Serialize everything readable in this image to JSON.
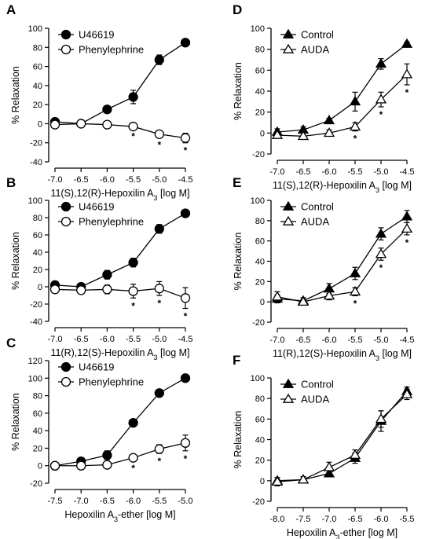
{
  "chart_data": [
    {
      "panel": "A",
      "type": "line",
      "xlabel": "11(S),12(R)-Hepoxilin A3 [log M]",
      "ylabel": "% Relaxation",
      "xlim": [
        -7.0,
        -4.5
      ],
      "ylim": [
        -40,
        100
      ],
      "xticks": [
        "-7.0",
        "-6.5",
        "-6.0",
        "-5.5",
        "-5.0",
        "-4.5"
      ],
      "yticks": [
        "-40",
        "-20",
        "0",
        "20",
        "40",
        "60",
        "80",
        "100"
      ],
      "legend": "top-left",
      "series": [
        {
          "name": "U46619",
          "marker": "circle-filled",
          "x": [
            -7.0,
            -6.5,
            -6.0,
            -5.5,
            -5.0,
            -4.5
          ],
          "y": [
            2,
            0,
            15,
            28,
            67,
            85
          ],
          "err": [
            2,
            2,
            3,
            7,
            5,
            2
          ]
        },
        {
          "name": "Phenylephrine",
          "marker": "circle-open",
          "x": [
            -7.0,
            -6.5,
            -6.0,
            -5.5,
            -5.0,
            -4.5
          ],
          "y": [
            -1,
            0,
            -1,
            -3,
            -11,
            -15
          ],
          "err": [
            2,
            2,
            2,
            2,
            3,
            5
          ]
        }
      ],
      "significance_x": [
        -5.5,
        -5.0,
        -4.5
      ]
    },
    {
      "panel": "B",
      "type": "line",
      "xlabel": "11(R),12(S)-Hepoxilin A3 [log M]",
      "ylabel": "% Relaxation",
      "xlim": [
        -7.0,
        -4.5
      ],
      "ylim": [
        -40,
        100
      ],
      "xticks": [
        "-7.0",
        "-6.5",
        "-6.0",
        "-5.5",
        "-5.0",
        "-4.5"
      ],
      "yticks": [
        "-40",
        "-20",
        "0",
        "20",
        "40",
        "60",
        "80",
        "100"
      ],
      "legend": "top-left",
      "series": [
        {
          "name": "U46619",
          "marker": "circle-filled",
          "x": [
            -7.0,
            -6.5,
            -6.0,
            -5.5,
            -5.0,
            -4.5
          ],
          "y": [
            2,
            0,
            14,
            28,
            67,
            85
          ],
          "err": [
            3,
            2,
            5,
            5,
            5,
            2
          ]
        },
        {
          "name": "Phenylephrine",
          "marker": "circle-open",
          "x": [
            -7.0,
            -6.5,
            -6.0,
            -5.5,
            -5.0,
            -4.5
          ],
          "y": [
            -3,
            -4,
            -3,
            -5,
            -2,
            -13
          ],
          "err": [
            3,
            3,
            5,
            8,
            8,
            12
          ]
        }
      ],
      "significance_x": [
        -5.5,
        -5.0,
        -4.5
      ]
    },
    {
      "panel": "C",
      "type": "line",
      "xlabel": "Hepoxilin A3-ether [log M]",
      "ylabel": "% Relaxation",
      "xlim": [
        -7.5,
        -5.0
      ],
      "ylim": [
        -20,
        120
      ],
      "xticks": [
        "-7.5",
        "-7.0",
        "-6.5",
        "-6.0",
        "-5.5",
        "-5.0"
      ],
      "yticks": [
        "-20",
        "0",
        "20",
        "40",
        "60",
        "80",
        "100",
        "120"
      ],
      "legend": "top-left",
      "series": [
        {
          "name": "U46619",
          "marker": "circle-filled",
          "x": [
            -7.5,
            -7.0,
            -6.5,
            -6.0,
            -5.5,
            -5.0
          ],
          "y": [
            0,
            5,
            12,
            49,
            83,
            100
          ],
          "err": [
            2,
            4,
            5,
            2,
            2,
            2
          ]
        },
        {
          "name": "Phenylephrine",
          "marker": "circle-open",
          "x": [
            -7.5,
            -7.0,
            -6.5,
            -6.0,
            -5.5,
            -5.0
          ],
          "y": [
            0,
            0,
            1,
            9,
            19,
            26
          ],
          "err": [
            2,
            3,
            2,
            3,
            5,
            9
          ]
        }
      ],
      "significance_x": [
        -6.0,
        -5.5,
        -5.0
      ]
    },
    {
      "panel": "D",
      "type": "line",
      "xlabel": "11(S),12(R)-Hepoxilin A3 [log M]",
      "ylabel": "% Relaxation",
      "xlim": [
        -7.0,
        -4.5
      ],
      "ylim": [
        -20,
        100
      ],
      "xticks": [
        "-7.0",
        "-6.5",
        "-6.0",
        "-5.5",
        "-5.0",
        "-4.5"
      ],
      "yticks": [
        "-20",
        "0",
        "20",
        "40",
        "60",
        "80",
        "100"
      ],
      "legend": "top-left",
      "series": [
        {
          "name": "Control",
          "marker": "triangle-filled",
          "x": [
            -7.0,
            -6.5,
            -6.0,
            -5.5,
            -5.0,
            -4.5
          ],
          "y": [
            1,
            3,
            12,
            30,
            66,
            85
          ],
          "err": [
            3,
            3,
            2,
            9,
            5,
            2
          ]
        },
        {
          "name": "AUDA",
          "marker": "triangle-open",
          "x": [
            -7.0,
            -6.5,
            -6.0,
            -5.5,
            -5.0,
            -4.5
          ],
          "y": [
            -2,
            -3,
            0,
            6,
            32,
            56
          ],
          "err": [
            3,
            3,
            3,
            4,
            7,
            10
          ]
        }
      ],
      "significance_x": [
        -5.5,
        -5.0,
        -4.5
      ]
    },
    {
      "panel": "E",
      "type": "line",
      "xlabel": "11(R),12(S)-Hepoxilin A3 [log M]",
      "ylabel": "% Relaxation",
      "xlim": [
        -7.0,
        -4.5
      ],
      "ylim": [
        -20,
        100
      ],
      "xticks": [
        "-7.0",
        "-6.5",
        "-6.0",
        "-5.5",
        "-5.0",
        "-4.5"
      ],
      "yticks": [
        "-20",
        "0",
        "20",
        "40",
        "60",
        "80",
        "100"
      ],
      "legend": "top-left",
      "series": [
        {
          "name": "Control",
          "marker": "triangle-filled",
          "x": [
            -7.0,
            -6.5,
            -6.0,
            -5.5,
            -5.0,
            -4.5
          ],
          "y": [
            3,
            1,
            13,
            28,
            67,
            84
          ],
          "err": [
            4,
            3,
            5,
            6,
            6,
            6
          ]
        },
        {
          "name": "AUDA",
          "marker": "triangle-open",
          "x": [
            -7.0,
            -6.5,
            -6.0,
            -5.5,
            -5.0,
            -4.5
          ],
          "y": [
            5,
            0,
            6,
            10,
            47,
            72
          ],
          "err": [
            5,
            2,
            4,
            4,
            6,
            6
          ]
        }
      ],
      "significance_x": [
        -5.5,
        -5.0,
        -4.5
      ]
    },
    {
      "panel": "F",
      "type": "line",
      "xlabel": "Hepoxilin A3-ether [log M]",
      "ylabel": "% Relaxation",
      "xlim": [
        -8.0,
        -5.5
      ],
      "ylim": [
        -20,
        100
      ],
      "xticks": [
        "-8.0",
        "-7.5",
        "-7.0",
        "-6.5",
        "-6.0",
        "-5.5"
      ],
      "yticks": [
        "-20",
        "0",
        "20",
        "40",
        "60",
        "80",
        "100"
      ],
      "legend": "top-left",
      "series": [
        {
          "name": "Control",
          "marker": "triangle-filled",
          "x": [
            -8.0,
            -7.5,
            -7.0,
            -6.5,
            -6.0,
            -5.5
          ],
          "y": [
            0,
            1,
            7,
            22,
            58,
            87
          ],
          "err": [
            3,
            3,
            3,
            5,
            10,
            4
          ]
        },
        {
          "name": "AUDA",
          "marker": "triangle-open",
          "x": [
            -8.0,
            -7.5,
            -7.0,
            -6.5,
            -6.0,
            -5.5
          ],
          "y": [
            -1,
            1,
            13,
            25,
            60,
            84
          ],
          "err": [
            4,
            3,
            5,
            5,
            8,
            5
          ]
        }
      ],
      "significance_x": []
    }
  ]
}
